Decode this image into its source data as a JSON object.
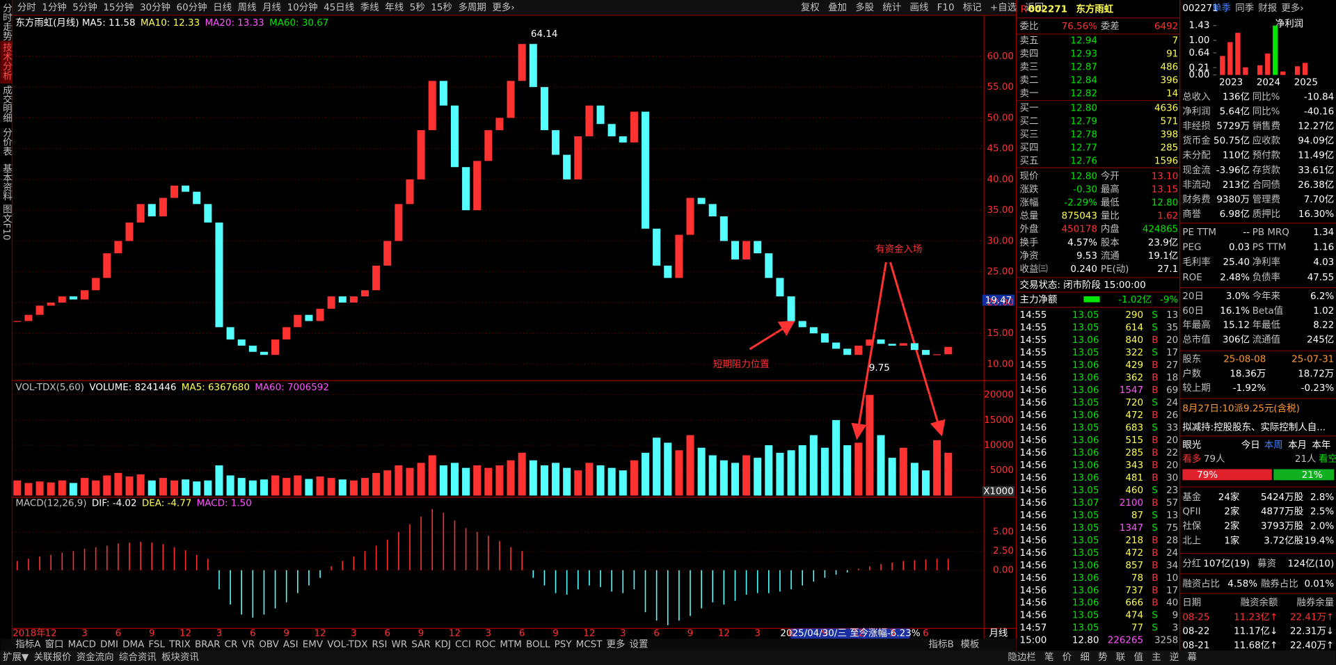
{
  "left_tabs": [
    "分时走势",
    "技术分析",
    "成交明细",
    "分价表",
    "基本资料",
    "图文F10"
  ],
  "toolbar": {
    "periods": [
      "分时",
      "1分钟",
      "5分钟",
      "15分钟",
      "30分钟",
      "60分钟",
      "日线",
      "周线",
      "月线",
      "10分钟",
      "45日线",
      "季线",
      "年线",
      "5秒",
      "15秒",
      "多周期",
      "更多›"
    ],
    "actions": [
      "复权",
      "叠加",
      "多股",
      "统计",
      "画线",
      "F10",
      "标记",
      "+自选",
      "返回"
    ]
  },
  "kline": {
    "title": "东方雨虹(月线)",
    "ma": [
      {
        "text": "MA5: 11.58",
        "color": "#ffffff"
      },
      {
        "text": "MA10: 12.33",
        "color": "#ffff54"
      },
      {
        "text": "MA20: 13.33",
        "color": "#ff54ff"
      },
      {
        "text": "MA60: 30.67",
        "color": "#00e600"
      }
    ],
    "ylim": [
      7.6,
      64.3
    ],
    "yticks": [
      {
        "value": 10,
        "label": "10.00"
      },
      {
        "value": 15,
        "label": "15.00"
      },
      {
        "value": 20,
        "label": "20.00"
      },
      {
        "value": 25,
        "label": "25.00"
      },
      {
        "value": 30,
        "label": "30.00"
      },
      {
        "value": 35,
        "label": "35.00"
      },
      {
        "value": 40,
        "label": "40.00"
      },
      {
        "value": 45,
        "label": "45.00"
      },
      {
        "value": 50,
        "label": "50.00"
      },
      {
        "value": 55,
        "label": "55.00"
      },
      {
        "value": 60,
        "label": "60.00"
      }
    ],
    "cursor_price": "19.47",
    "up_color": "#ff3232",
    "down_color": "#54ffff",
    "closes": [
      17,
      18,
      19.5,
      20,
      21,
      20.5,
      22,
      24,
      28,
      30,
      33,
      36,
      34,
      37,
      39,
      38,
      36,
      33,
      16,
      14,
      13,
      12,
      11.5,
      14,
      16,
      18,
      17,
      19,
      21,
      20,
      21,
      22,
      26,
      30,
      36,
      40,
      48,
      56,
      52,
      42,
      35,
      43,
      48,
      50,
      56,
      62,
      55,
      48,
      44,
      40,
      47,
      52,
      49,
      47,
      46,
      51,
      32,
      26,
      24,
      31,
      37,
      36,
      34,
      30,
      27,
      30,
      28,
      24,
      21,
      17,
      16,
      15,
      13.5,
      12.5,
      11.5,
      13,
      14,
      13.3,
      13,
      13.4,
      12.3,
      11.5,
      11.6,
      12.8
    ],
    "high_label": "64.14",
    "low_label": "9.75",
    "notes": [
      "有资金入场",
      "短期阻力位置"
    ],
    "volume": {
      "header": [
        {
          "text": "VOL-TDX(5,60)",
          "color": "#c0c0c0"
        },
        {
          "text": "VOLUME: 8241446",
          "color": "#ffffff"
        },
        {
          "text": "MA5: 6367680",
          "color": "#ffff54"
        },
        {
          "text": "MA60: 7006592",
          "color": "#ff54ff"
        }
      ],
      "ylim": [
        0,
        22500
      ],
      "yticks": [
        5000,
        10000,
        15000,
        20000
      ],
      "unit": "X1000",
      "values": [
        3000,
        2500,
        2800,
        2600,
        3000,
        2500,
        3500,
        3000,
        4000,
        4500,
        3800,
        4200,
        3000,
        3500,
        3000,
        3200,
        2800,
        3000,
        6000,
        4000,
        3500,
        3000,
        3200,
        4000,
        3500,
        4000,
        3300,
        3800,
        3500,
        3200,
        3000,
        3500,
        4500,
        5000,
        6000,
        5500,
        6500,
        8000,
        6000,
        6500,
        5500,
        6000,
        5500,
        6000,
        7000,
        8500,
        7000,
        6000,
        6500,
        5500,
        5000,
        6500,
        6000,
        5500,
        5000,
        7000,
        8500,
        11500,
        10500,
        9000,
        12000,
        9500,
        8000,
        7000,
        6500,
        8000,
        7500,
        10000,
        8500,
        9000,
        10000,
        12000,
        9500,
        15000,
        10000,
        10500,
        20000,
        12000,
        7500,
        9500,
        6500,
        5000,
        11000,
        8500
      ]
    },
    "macd": {
      "header": [
        {
          "text": "MACD(12,26,9)",
          "color": "#c0c0c0"
        },
        {
          "text": "DIF: -4.02",
          "color": "#ffffff"
        },
        {
          "text": "DEA: -4.77",
          "color": "#ffff54"
        },
        {
          "text": "MACD: 1.50",
          "color": "#ff54ff"
        }
      ],
      "ylim": [
        -7.5,
        9.2
      ],
      "yticks": [
        {
          "value": 0,
          "label": "0.00"
        },
        {
          "value": 2.5,
          "label": "2.50"
        },
        {
          "value": 5,
          "label": "5.00"
        }
      ],
      "values": [
        1.2,
        1.5,
        1.8,
        2.0,
        2.3,
        2.5,
        2.8,
        3.0,
        3.2,
        3.5,
        3.6,
        3.7,
        3.6,
        3.4,
        3.0,
        2.6,
        2.0,
        1.5,
        -2.5,
        -4.5,
        -5.8,
        -6.2,
        -5.8,
        -5.0,
        -4.2,
        -3.0,
        -2.0,
        -1.0,
        0.5,
        1.2,
        1.8,
        2.5,
        3.2,
        4.0,
        5.0,
        6.0,
        7.0,
        8.0,
        7.5,
        6.5,
        5.5,
        5.0,
        4.5,
        3.8,
        3.0,
        2.5,
        -1.0,
        -2.0,
        -3.0,
        -3.2,
        -2.5,
        -2.0,
        -2.2,
        -2.8,
        -3.0,
        -2.5,
        -5.5,
        -6.6,
        -7.2,
        -6.6,
        -6.0,
        -5.0,
        -4.2,
        -4.5,
        -4.0,
        -3.2,
        -3.0,
        -3.0,
        -2.8,
        -2.5,
        -2.0,
        -1.5,
        -1.0,
        -0.6,
        -0.3,
        0.2,
        0.5,
        0.8,
        1.0,
        1.2,
        1.3,
        1.4,
        1.5,
        1.5
      ]
    },
    "date_labels": [
      "2018年",
      "12",
      "3",
      "6",
      "9",
      "12",
      "3",
      "6",
      "9",
      "12",
      "3",
      "6",
      "9",
      "12",
      "3",
      "6",
      "9",
      "12",
      "3",
      "6",
      "9",
      "12",
      "3",
      "6",
      "9",
      "12",
      "3",
      "6"
    ],
    "date_highlight": "2025/04/30/三  至今涨幅-6.23%",
    "period": "月线"
  },
  "indicator_tabs": [
    "指标A",
    "窗口",
    "MACD",
    "DMI",
    "DMA",
    "FSL",
    "TRIX",
    "BRAR",
    "CR",
    "VR",
    "OBV",
    "ASI",
    "EMV",
    "VOL-TDX",
    "RSI",
    "WR",
    "SAR",
    "KDJ",
    "CCI",
    "ROC",
    "MTM",
    "BOLL",
    "PSY",
    "MCST",
    "更多",
    "设置"
  ],
  "indicator_right": [
    "指标B",
    "模板"
  ],
  "bottom_tabs": [
    "扩展▼",
    "关联报价",
    "资金流向",
    "综合资讯",
    "板块资讯"
  ],
  "bottom_right": [
    "隐边栏",
    "笔",
    "价",
    "细",
    "势",
    "联",
    "值",
    "主",
    "逆",
    "幕"
  ],
  "quote": {
    "flag": "R",
    "code": "002271",
    "name": "东方雨虹",
    "ratio": [
      "委比",
      "76.56%",
      "委差",
      "6492"
    ],
    "sells": [
      [
        "卖五",
        "12.94",
        "7"
      ],
      [
        "卖四",
        "12.93",
        "91"
      ],
      [
        "卖三",
        "12.87",
        "486"
      ],
      [
        "卖二",
        "12.84",
        "396"
      ],
      [
        "卖一",
        "12.82",
        "14"
      ]
    ],
    "buys": [
      [
        "买一",
        "12.80",
        "4636"
      ],
      [
        "买二",
        "12.79",
        "571"
      ],
      [
        "买三",
        "12.78",
        "398"
      ],
      [
        "买四",
        "12.77",
        "285"
      ],
      [
        "买五",
        "12.76",
        "1596"
      ]
    ],
    "pairs": [
      {
        "cells": [
          "现价",
          "12.80",
          "今开",
          "13.10"
        ],
        "colors": [
          "#00e600",
          "#ff3232"
        ]
      },
      {
        "cells": [
          "涨跌",
          "-0.30",
          "最高",
          "13.15"
        ],
        "colors": [
          "#00e600",
          "#ff3232"
        ]
      },
      {
        "cells": [
          "涨幅",
          "-2.29%",
          "最低",
          "12.80"
        ],
        "colors": [
          "#00e600",
          "#00e600"
        ]
      },
      {
        "cells": [
          "总量",
          "875043",
          "量比",
          "1.62"
        ],
        "colors": [
          "#ffff54",
          "#ff3232"
        ]
      },
      {
        "cells": [
          "外盘",
          "450178",
          "内盘",
          "424865"
        ],
        "colors": [
          "#ff3232",
          "#00e600"
        ]
      },
      {
        "cells": [
          "换手",
          "4.57%",
          "股本",
          "23.9亿"
        ],
        "colors": [
          "#ffffff",
          "#ffffff"
        ]
      },
      {
        "cells": [
          "净资",
          "9.53",
          "流通",
          "19.1亿"
        ],
        "colors": [
          "#ffffff",
          "#ffffff"
        ]
      },
      {
        "cells": [
          "收益㈢",
          "0.240",
          "PE(动)",
          "27.1"
        ],
        "colors": [
          "#ffffff",
          "#ffffff"
        ]
      }
    ],
    "status": "交易状态: 闭市阶段 15:00:00",
    "main_flow": [
      "主力净额",
      "-1.02亿",
      "-9%"
    ],
    "ticks": [
      [
        "14:55",
        "13.05",
        "290",
        "S",
        "13"
      ],
      [
        "14:55",
        "13.05",
        "614",
        "S",
        "35"
      ],
      [
        "14:55",
        "13.06",
        "840",
        "B",
        "20"
      ],
      [
        "14:55",
        "13.05",
        "322",
        "S",
        "17"
      ],
      [
        "14:55",
        "13.06",
        "429",
        "B",
        "27"
      ],
      [
        "14:56",
        "13.06",
        "362",
        "B",
        "18"
      ],
      [
        "14:56",
        "13.06",
        "1547",
        "B",
        "69"
      ],
      [
        "14:56",
        "13.05",
        "720",
        "S",
        "24"
      ],
      [
        "14:56",
        "13.06",
        "472",
        "B",
        "26"
      ],
      [
        "14:56",
        "13.05",
        "683",
        "S",
        "33"
      ],
      [
        "14:56",
        "13.06",
        "515",
        "B",
        "20"
      ],
      [
        "14:56",
        "13.06",
        "285",
        "B",
        "22"
      ],
      [
        "14:56",
        "13.06",
        "343",
        "B",
        "20"
      ],
      [
        "14:56",
        "13.06",
        "481",
        "B",
        "30"
      ],
      [
        "14:56",
        "13.05",
        "460",
        "S",
        "23"
      ],
      [
        "14:56",
        "13.07",
        "2100",
        "B",
        "57"
      ],
      [
        "14:56",
        "13.05",
        "87",
        "S",
        "13"
      ],
      [
        "14:56",
        "13.05",
        "1347",
        "S",
        "75"
      ],
      [
        "14:56",
        "13.05",
        "218",
        "B",
        "28"
      ],
      [
        "14:56",
        "13.05",
        "472",
        "B",
        "24"
      ],
      [
        "14:56",
        "13.06",
        "857",
        "B",
        "34"
      ],
      [
        "14:56",
        "13.06",
        "78",
        "B",
        "10"
      ],
      [
        "14:56",
        "13.06",
        "737",
        "B",
        "17"
      ],
      [
        "14:56",
        "13.06",
        "666",
        "B",
        "40"
      ],
      [
        "14:56",
        "13.05",
        "474",
        "S",
        "9"
      ],
      [
        "14:57",
        "13.05",
        "77",
        "S",
        "3"
      ],
      [
        "15:00",
        "12.80",
        "226265",
        "",
        "3258"
      ]
    ]
  },
  "fundamentals": {
    "code": "002271",
    "tabs": [
      "单季",
      "同季",
      "财报",
      "更多›"
    ],
    "profit_chart": {
      "label": "净利润",
      "ylim": [
        0,
        1.43
      ],
      "yticks": [
        {
          "value": 1.43,
          "label": "1.43"
        },
        {
          "value": 1.0,
          "label": "1.00"
        },
        {
          "value": 0.64,
          "label": "0.64"
        },
        {
          "value": 0.21,
          "label": "0.21"
        },
        {
          "value": 0,
          "label": "0.00"
        }
      ],
      "years": [
        "2023",
        "2024",
        "2025"
      ],
      "values": [
        0.55,
        0.95,
        1.22,
        0.22,
        0.28,
        0.62,
        1.43,
        0.1,
        0.25,
        0.35,
        null,
        null
      ],
      "colors": [
        "#ff3232",
        "#ff3232",
        "#ff3232",
        "#ff3232",
        "#ff3232",
        "#ff3232",
        "#00e600",
        "#ff3232",
        "#ff3232",
        "#ff3232",
        null,
        null
      ]
    },
    "finance": [
      {
        "cells": [
          "总收入",
          "136亿",
          "同比%",
          "-10.84"
        ],
        "colors": [
          "#ffffff",
          "#ffffff"
        ]
      },
      {
        "cells": [
          "净利润",
          "5.64亿",
          "同比%",
          "-40.16"
        ],
        "colors": [
          "#ffffff",
          "#ffffff"
        ]
      },
      {
        "cells": [
          "非经损",
          "5729万",
          "销售费",
          "12.27亿"
        ],
        "colors": [
          "#ffffff",
          "#ffffff"
        ]
      },
      {
        "cells": [
          "货币金",
          "50.75亿",
          "应收款",
          "94.09亿"
        ],
        "colors": [
          "#ffffff",
          "#ffffff"
        ]
      },
      {
        "cells": [
          "未分配",
          "110亿",
          "预付款",
          "11.49亿"
        ],
        "colors": [
          "#ffffff",
          "#ffffff"
        ]
      },
      {
        "cells": [
          "现金流",
          "-3.96亿",
          "存货款",
          "33.61亿"
        ],
        "colors": [
          "#ffffff",
          "#ffffff"
        ]
      },
      {
        "cells": [
          "非流动",
          "213亿",
          "合同债",
          "26.38亿"
        ],
        "colors": [
          "#ffffff",
          "#ffffff"
        ]
      },
      {
        "cells": [
          "财务费",
          "9380万",
          "管理费",
          "7.70亿"
        ],
        "colors": [
          "#ffffff",
          "#ffffff"
        ]
      },
      {
        "cells": [
          "商誉",
          "6.98亿",
          "质押比",
          "16.30%"
        ],
        "colors": [
          "#ffffff",
          "#ffffff"
        ]
      }
    ],
    "valuation": [
      {
        "cells": [
          "PE TTM",
          "--",
          "PB MRQ",
          "1.34"
        ],
        "colors": [
          "#ffffff",
          "#ffffff"
        ]
      },
      {
        "cells": [
          "PEG",
          "0.03",
          "PS TTM",
          "1.16"
        ],
        "colors": [
          "#ffffff",
          "#ffffff"
        ]
      },
      {
        "cells": [
          "毛利率",
          "25.40",
          "净利率",
          "4.03"
        ],
        "colors": [
          "#ffffff",
          "#ffffff"
        ]
      },
      {
        "cells": [
          "ROE",
          "2.48%",
          "负债率",
          "47.55"
        ],
        "colors": [
          "#ffffff",
          "#ffffff"
        ]
      }
    ],
    "performance": [
      {
        "cells": [
          "20日",
          "3.0%",
          "今年来",
          "6.2%"
        ],
        "colors": [
          "#ffffff",
          "#ffffff"
        ]
      },
      {
        "cells": [
          "60日",
          "16.1%",
          "Beta值",
          "1.02"
        ],
        "colors": [
          "#ffffff",
          "#ffffff"
        ]
      },
      {
        "cells": [
          "年最高",
          "15.12",
          "年最低",
          "8.22"
        ],
        "colors": [
          "#ffffff",
          "#ffffff"
        ]
      },
      {
        "cells": [
          "总市值",
          "306亿",
          "流通值",
          "245亿"
        ],
        "colors": [
          "#ffffff",
          "#ffffff"
        ]
      }
    ],
    "holders": [
      {
        "cells": [
          "股东",
          "25-08-08",
          "25-07-31"
        ],
        "colors": [
          "#ff9933",
          "#ff9933"
        ]
      },
      {
        "cells": [
          "户数",
          "18.36万",
          "18.72万"
        ],
        "colors": [
          "#ffffff",
          "#ffffff"
        ]
      },
      {
        "cells": [
          "较上期",
          "-1.92%",
          "-0.23%"
        ],
        "colors": [
          "#ffffff",
          "#ffffff"
        ]
      }
    ],
    "dividend": "8月27日:10派9.25元(含税)",
    "news": "拟减持:控股股东、实际控制人自...",
    "view_tabs": [
      "眼光",
      "今日",
      "本周",
      "本月",
      "本年"
    ],
    "sentiment": [
      "看多",
      "79人",
      "21人",
      "看空"
    ],
    "sentiment_pct": [
      "79%",
      "21%"
    ],
    "institutions": [
      [
        "基金",
        "24家",
        "5424万股",
        "2.8%"
      ],
      [
        "QFII",
        "2家",
        "4877万股",
        "2.5%"
      ],
      [
        "社保",
        "2家",
        "3793万股",
        "2.0%"
      ],
      [
        "北上",
        "1家",
        "3.72亿股",
        "19.4%"
      ]
    ],
    "funding": [
      [
        "分红",
        "107亿(19)",
        "募资",
        "124亿(10)"
      ],
      [
        "融资占比",
        "4.58%",
        "融券占比",
        "0.01%"
      ]
    ],
    "margin_header": [
      "日期",
      "融资余额",
      "融券余量"
    ],
    "margin_rows": [
      {
        "cells": [
          "08-25",
          "11.23亿↑",
          "22.41万↑"
        ],
        "colors": [
          "#ff3232",
          "#ff3232"
        ]
      },
      {
        "cells": [
          "08-22",
          "11.17亿↓",
          "22.31万↓"
        ],
        "colors": [
          "#ffffff",
          "#ffffff"
        ]
      },
      {
        "cells": [
          "08-21",
          "11.68亿↑",
          "22.40万↑"
        ],
        "colors": [
          "#ffffff",
          "#ffffff"
        ]
      }
    ]
  }
}
